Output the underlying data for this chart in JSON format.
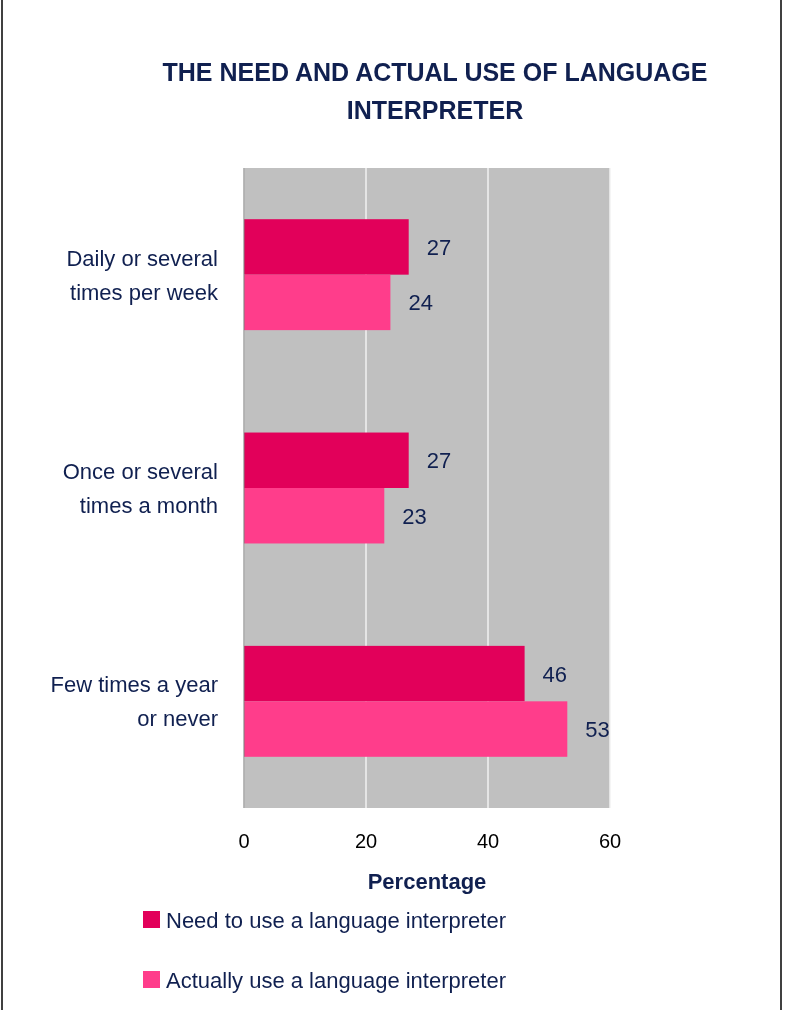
{
  "chart_data": {
    "type": "bar",
    "orientation": "horizontal",
    "title": "THE NEED AND ACTUAL USE OF LANGUAGE INTERPRETER",
    "xlabel": "Percentage",
    "categories": [
      "Daily or several times per week",
      "Once or several times a month",
      "Few times a year or never"
    ],
    "series": [
      {
        "name": "Need to use a language interpreter",
        "color": "#e2005a",
        "values": [
          27,
          27,
          46
        ]
      },
      {
        "name": "Actually use a language interpreter",
        "color": "#ff3d8b",
        "values": [
          24,
          23,
          53
        ]
      }
    ],
    "xlim": [
      0,
      60
    ],
    "xticks": [
      0,
      20,
      40,
      60
    ],
    "grid": "x",
    "data_labels": true,
    "legend": "bottom"
  }
}
